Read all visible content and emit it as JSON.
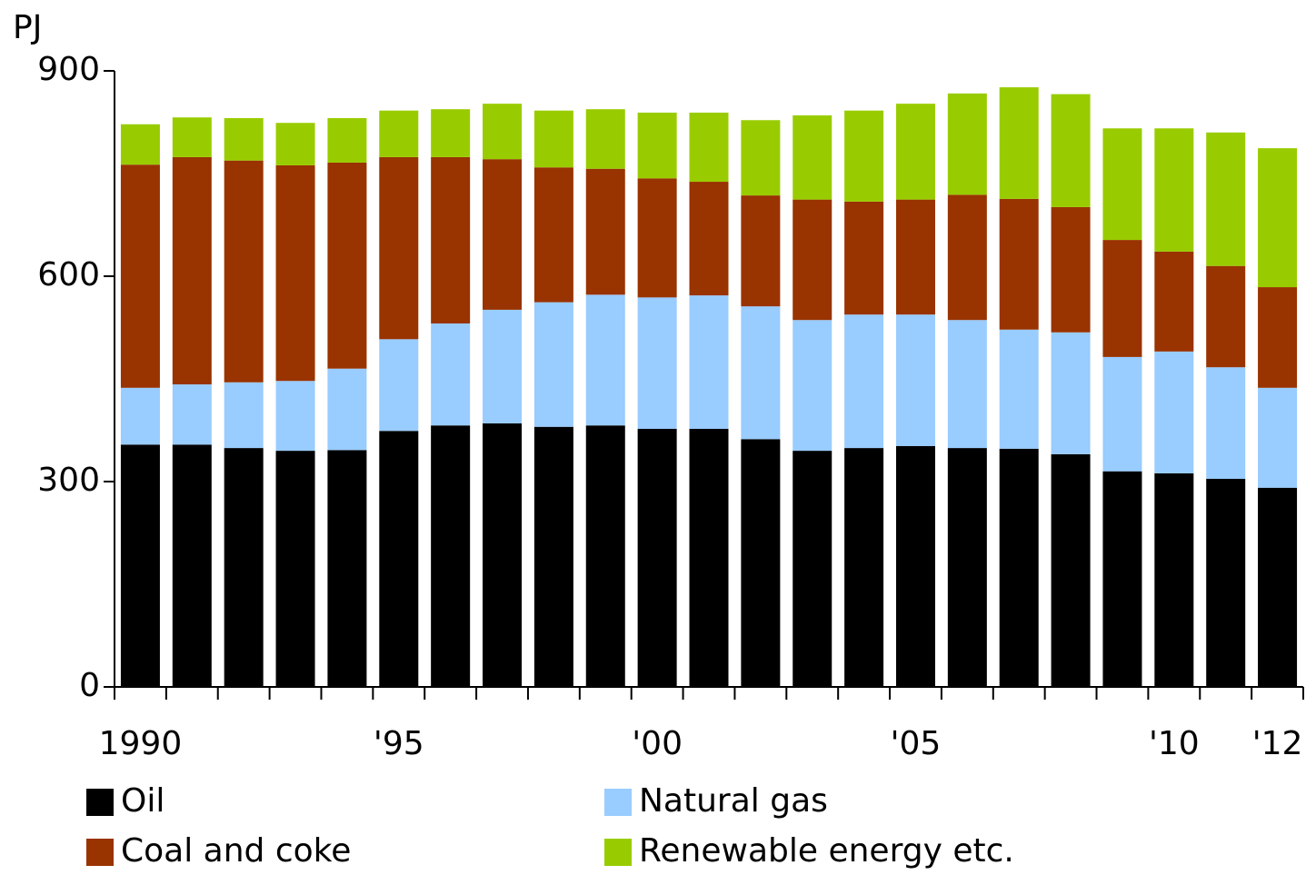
{
  "chart_data": {
    "type": "stacked_bar",
    "y_label": "PJ",
    "categories": [
      "1990",
      null,
      null,
      null,
      null,
      "'95",
      null,
      null,
      null,
      null,
      "'00",
      null,
      null,
      null,
      null,
      "'05",
      null,
      null,
      null,
      null,
      "'10",
      null,
      "'12"
    ],
    "series": [
      {
        "name": "Oil",
        "color": "#000000",
        "values": [
          354,
          354,
          349,
          345,
          346,
          374,
          382,
          385,
          380,
          382,
          377,
          377,
          362,
          345,
          349,
          352,
          349,
          348,
          340,
          315,
          312,
          304,
          291
        ]
      },
      {
        "name": "Natural gas",
        "color": "#99ccff",
        "values": [
          83,
          88,
          96,
          102,
          119,
          134,
          149,
          166,
          182,
          191,
          192,
          195,
          194,
          191,
          195,
          192,
          187,
          174,
          178,
          167,
          178,
          163,
          146
        ]
      },
      {
        "name": "Coal and coke",
        "color": "#993300",
        "values": [
          326,
          332,
          324,
          315,
          301,
          266,
          243,
          220,
          197,
          184,
          174,
          166,
          162,
          176,
          165,
          168,
          183,
          191,
          183,
          171,
          146,
          148,
          147
        ]
      },
      {
        "name": "Renewable energy etc.",
        "color": "#99cc00",
        "values": [
          59,
          58,
          62,
          62,
          65,
          68,
          70,
          81,
          83,
          87,
          96,
          101,
          110,
          123,
          133,
          140,
          148,
          163,
          165,
          163,
          180,
          195,
          203
        ]
      }
    ],
    "ylim": [
      0,
      900
    ],
    "yticks": [
      0,
      300,
      600,
      900
    ],
    "grid": false
  }
}
